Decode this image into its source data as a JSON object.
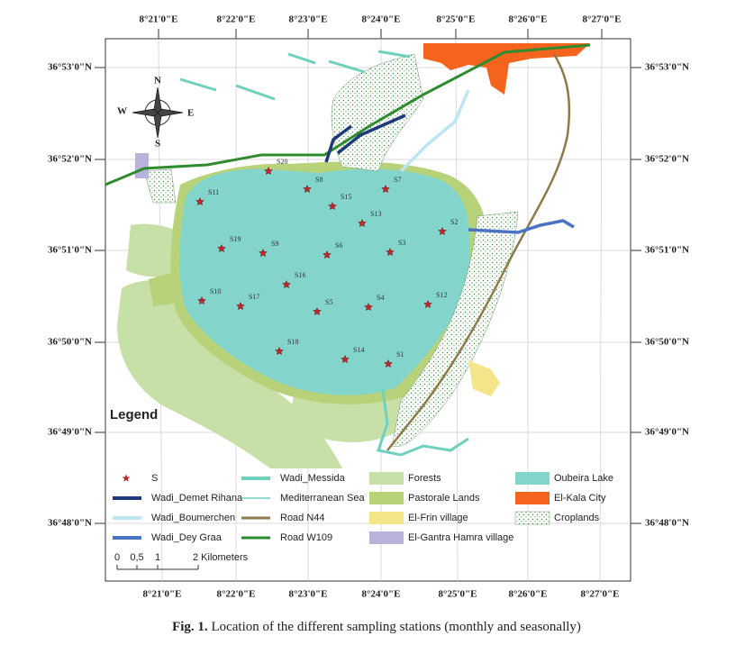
{
  "map": {
    "longitude_labels_top": [
      "8°21'0\"E",
      "8°22'0\"E",
      "8°23'0\"E",
      "8°24'0\"E",
      "8°25'0\"E",
      "8°26'0\"E",
      "8°27'0\"E"
    ],
    "longitude_labels_bottom": [
      "8°21'0\"E",
      "8°22'0\"E",
      "8°23'0\"E",
      "8°24'0\"E",
      "8°25'0\"E",
      "8°26'0\"E",
      "8°27'0\"E"
    ],
    "latitude_labels_left": [
      "36°53'0\"N",
      "36°52'0\"N",
      "36°51'0\"N",
      "36°50'0\"N",
      "36°49'0\"N",
      "36°48'0\"N"
    ],
    "latitude_labels_right": [
      "36°53'0\"N",
      "36°52'0\"N",
      "36°51'0\"N",
      "36°50'0\"N",
      "36°49'0\"N",
      "36°48'0\"N"
    ],
    "compass": [
      "N",
      "E",
      "S",
      "W"
    ],
    "stations": [
      "S1",
      "S2",
      "S3",
      "S4",
      "S5",
      "S6",
      "S7",
      "S8",
      "S9",
      "S10",
      "S11",
      "S12",
      "S13",
      "S14",
      "S15",
      "S16",
      "S17",
      "S18",
      "S19",
      "S20"
    ],
    "legend": {
      "title": "Legend",
      "items": [
        "S",
        "Wadi_Demet Rihana",
        "Wadi_Boumerchen",
        "Wadi_Dey Graa",
        "Wadi_Messida",
        "Mediterranean Sea",
        "Road N44",
        "Road W109",
        "Forests",
        "Pastorale Lands",
        "El-Frin village",
        "El-Gantra Hamra village",
        "Oubeira Lake",
        "El-Kala City",
        "Croplands"
      ]
    },
    "scale_bar": [
      "0",
      "0,5",
      "1",
      "2 Kilometers"
    ]
  },
  "caption": {
    "label": "Fig. 1.",
    "text": "Location of the different sampling stations (monthly and seasonally)"
  }
}
